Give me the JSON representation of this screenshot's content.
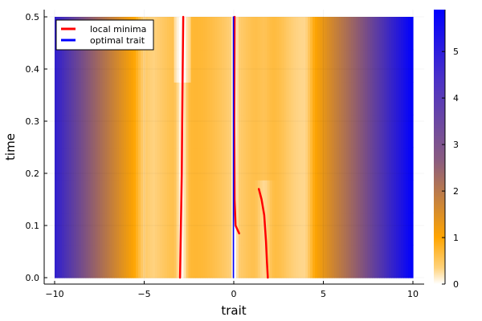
{
  "chart_data": {
    "type": "heatmap",
    "xlabel": "trait",
    "ylabel": "time",
    "xlim": [
      -10,
      10
    ],
    "ylim": [
      0,
      0.5
    ],
    "x_ticks": [
      "−10",
      "−5",
      "0",
      "5",
      "10"
    ],
    "x_tick_values": [
      -10,
      -5,
      0,
      5,
      10
    ],
    "y_ticks": [
      "0.0",
      "0.1",
      "0.2",
      "0.3",
      "0.4",
      "0.5"
    ],
    "y_tick_values": [
      0,
      0.1,
      0.2,
      0.3,
      0.4,
      0.5
    ],
    "colorbar": {
      "range": [
        0,
        5.9
      ],
      "ticks": [
        "0",
        "1",
        "2",
        "3",
        "4",
        "5"
      ],
      "tick_values": [
        0,
        1,
        2,
        3,
        4,
        5
      ],
      "colors": [
        "#ffffff",
        "#ffa500",
        "#0000ff"
      ]
    },
    "grid": true,
    "legend_position": "top-left",
    "series": [
      {
        "name": "local minima",
        "color": "#ff0000",
        "segments": [
          {
            "points": [
              [
                -3.0,
                0.0
              ],
              [
                -2.95,
                0.1
              ],
              [
                -2.9,
                0.2
              ],
              [
                -2.88,
                0.3
              ],
              [
                -2.85,
                0.4
              ],
              [
                -2.82,
                0.5
              ]
            ]
          },
          {
            "points": [
              [
                0.05,
                0.5
              ],
              [
                0.03,
                0.3
              ],
              [
                0.05,
                0.15
              ],
              [
                0.1,
                0.1
              ],
              [
                0.3,
                0.085
              ]
            ]
          },
          {
            "points": [
              [
                1.4,
                0.17
              ],
              [
                1.55,
                0.15
              ],
              [
                1.7,
                0.12
              ],
              [
                1.8,
                0.07
              ],
              [
                1.85,
                0.03
              ],
              [
                1.9,
                0.0
              ]
            ]
          }
        ]
      },
      {
        "name": "optimal trait",
        "color": "#0000ff",
        "segments": [
          {
            "points": [
              [
                -0.02,
                0.0
              ],
              [
                -0.02,
                0.5
              ]
            ]
          }
        ]
      }
    ]
  }
}
